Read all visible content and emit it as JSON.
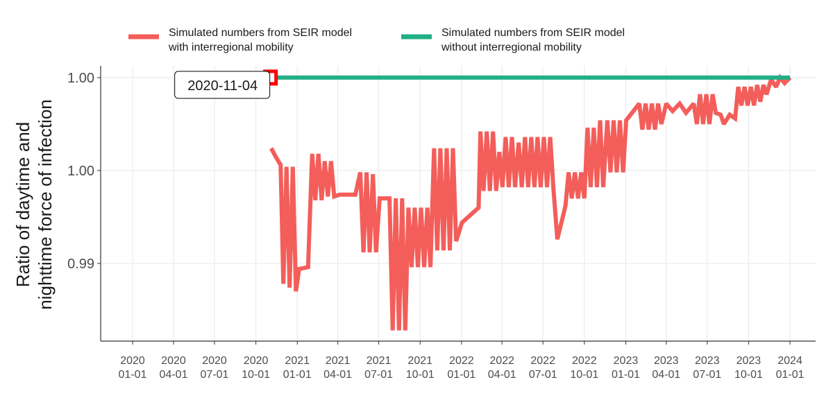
{
  "chart_data": {
    "type": "line",
    "ylabel": [
      "Ratio of daytime and",
      "nighttime force of infection"
    ],
    "xlim": [
      "2019-10-22",
      "2024-02-27"
    ],
    "ylim": [
      0.98582,
      1.00063
    ],
    "yticks": [
      {
        "value": 0.99,
        "label": "0.99"
      },
      {
        "value": 0.995,
        "label": "1.00"
      },
      {
        "value": 1.0,
        "label": "1.00"
      }
    ],
    "xticks": [
      {
        "value": "2020-01-01",
        "label": "2020\n01-01"
      },
      {
        "value": "2020-04-01",
        "label": "2020\n04-01"
      },
      {
        "value": "2020-07-01",
        "label": "2020\n07-01"
      },
      {
        "value": "2020-10-01",
        "label": "2020\n10-01"
      },
      {
        "value": "2021-01-01",
        "label": "2021\n01-01"
      },
      {
        "value": "2021-04-01",
        "label": "2021\n04-01"
      },
      {
        "value": "2021-07-01",
        "label": "2021\n07-01"
      },
      {
        "value": "2021-10-01",
        "label": "2021\n10-01"
      },
      {
        "value": "2022-01-01",
        "label": "2022\n01-01"
      },
      {
        "value": "2022-04-01",
        "label": "2022\n04-01"
      },
      {
        "value": "2022-07-01",
        "label": "2022\n07-01"
      },
      {
        "value": "2022-10-01",
        "label": "2022\n10-01"
      },
      {
        "value": "2023-01-01",
        "label": "2023\n01-01"
      },
      {
        "value": "2023-04-01",
        "label": "2023\n04-01"
      },
      {
        "value": "2023-07-01",
        "label": "2023\n07-01"
      },
      {
        "value": "2023-10-01",
        "label": "2023\n10-01"
      },
      {
        "value": "2024-01-01",
        "label": "2024\n01-01"
      }
    ],
    "grid": true,
    "legend": "top",
    "annotation": {
      "label": "2020-11-04",
      "x": "2020-11-04",
      "y": 1.0,
      "color": "#ff0000"
    },
    "series": [
      {
        "name": "Simulated numbers from SEIR model\nwith interregional mobility",
        "color": "#f35e5a",
        "x": [
          "2020-11-04",
          "2020-11-15",
          "2020-11-25",
          "2020-12-01",
          "2020-12-08",
          "2020-12-15",
          "2020-12-22",
          "2020-12-29",
          "2021-01-05",
          "2021-01-25",
          "2021-02-03",
          "2021-02-10",
          "2021-02-17",
          "2021-02-24",
          "2021-03-03",
          "2021-03-10",
          "2021-03-17",
          "2021-03-24",
          "2021-04-05",
          "2021-05-10",
          "2021-05-21",
          "2021-05-28",
          "2021-06-04",
          "2021-06-11",
          "2021-06-18",
          "2021-06-25",
          "2021-07-03",
          "2021-07-25",
          "2021-08-01",
          "2021-08-08",
          "2021-08-15",
          "2021-08-22",
          "2021-08-29",
          "2021-09-05",
          "2021-09-12",
          "2021-09-19",
          "2021-09-26",
          "2021-10-03",
          "2021-10-10",
          "2021-10-17",
          "2021-10-24",
          "2021-11-01",
          "2021-11-08",
          "2021-11-15",
          "2021-11-22",
          "2021-11-29",
          "2021-12-06",
          "2021-12-13",
          "2021-12-20",
          "2022-01-02",
          "2022-02-08",
          "2022-02-12",
          "2022-02-19",
          "2022-02-26",
          "2022-03-05",
          "2022-03-12",
          "2022-03-19",
          "2022-03-26",
          "2022-04-02",
          "2022-04-09",
          "2022-04-16",
          "2022-04-23",
          "2022-04-30",
          "2022-05-08",
          "2022-05-15",
          "2022-05-22",
          "2022-05-29",
          "2022-06-05",
          "2022-06-12",
          "2022-06-19",
          "2022-06-26",
          "2022-07-03",
          "2022-07-10",
          "2022-07-17",
          "2022-07-24",
          "2022-08-02",
          "2022-08-20",
          "2022-08-27",
          "2022-09-03",
          "2022-09-10",
          "2022-09-17",
          "2022-09-24",
          "2022-10-01",
          "2022-10-08",
          "2022-10-15",
          "2022-10-22",
          "2022-10-29",
          "2022-11-05",
          "2022-11-12",
          "2022-11-21",
          "2022-11-28",
          "2022-12-05",
          "2022-12-12",
          "2022-12-19",
          "2022-12-26",
          "2023-01-02",
          "2023-01-31",
          "2023-02-07",
          "2023-02-14",
          "2023-02-21",
          "2023-02-28",
          "2023-03-07",
          "2023-03-14",
          "2023-03-21",
          "2023-04-01",
          "2023-04-15",
          "2023-05-01",
          "2023-05-15",
          "2023-06-01",
          "2023-06-08",
          "2023-06-15",
          "2023-06-22",
          "2023-06-29",
          "2023-07-06",
          "2023-07-13",
          "2023-07-20",
          "2023-07-31",
          "2023-08-07",
          "2023-08-20",
          "2023-09-01",
          "2023-09-08",
          "2023-09-15",
          "2023-09-22",
          "2023-09-29",
          "2023-10-06",
          "2023-10-13",
          "2023-10-20",
          "2023-10-27",
          "2023-11-03",
          "2023-11-10",
          "2023-11-20",
          "2023-12-01",
          "2023-12-10",
          "2023-12-20",
          "2024-01-01"
        ],
        "values": [
          0.9962,
          0.9957,
          0.9953,
          0.9889,
          0.9952,
          0.9887,
          0.9952,
          0.9885,
          0.9897,
          0.9898,
          0.9959,
          0.9934,
          0.9959,
          0.9934,
          0.9955,
          0.9936,
          0.9955,
          0.9936,
          0.9937,
          0.9937,
          0.9949,
          0.9906,
          0.9949,
          0.9906,
          0.9948,
          0.9906,
          0.9935,
          0.9935,
          0.9864,
          0.9935,
          0.9864,
          0.9935,
          0.9864,
          0.993,
          0.9898,
          0.993,
          0.9898,
          0.993,
          0.9898,
          0.993,
          0.9898,
          0.9962,
          0.9907,
          0.9962,
          0.9907,
          0.9962,
          0.9907,
          0.9962,
          0.9912,
          0.9922,
          0.993,
          0.9971,
          0.9939,
          0.9971,
          0.9939,
          0.9971,
          0.9939,
          0.996,
          0.9941,
          0.9968,
          0.9941,
          0.9968,
          0.9941,
          0.9965,
          0.9941,
          0.9968,
          0.9941,
          0.9968,
          0.9941,
          0.9968,
          0.9941,
          0.9968,
          0.9941,
          0.9968,
          0.9941,
          0.9913,
          0.9931,
          0.9949,
          0.9935,
          0.9949,
          0.9935,
          0.9949,
          0.9935,
          0.9973,
          0.9941,
          0.9973,
          0.9941,
          0.9977,
          0.9941,
          0.9977,
          0.9949,
          0.9977,
          0.9949,
          0.9977,
          0.9949,
          0.9977,
          0.9986,
          0.9972,
          0.9986,
          0.9972,
          0.9986,
          0.9972,
          0.9986,
          0.9975,
          0.9986,
          0.9982,
          0.9986,
          0.9981,
          0.9986,
          0.9975,
          0.9991,
          0.9975,
          0.9991,
          0.9975,
          0.9991,
          0.9981,
          0.998,
          0.9975,
          0.998,
          0.9978,
          0.9995,
          0.9985,
          0.9995,
          0.9985,
          0.9995,
          0.9985,
          0.9996,
          0.9987,
          0.9996,
          0.9991,
          0.9999,
          0.9995,
          1.0,
          0.9997,
          1.0
        ]
      },
      {
        "name": "Simulated numbers from SEIR model\nwithout interregional mobility",
        "color": "#20af86",
        "x": [
          "2020-11-04",
          "2024-01-01"
        ],
        "values": [
          1.0,
          1.0
        ]
      }
    ]
  }
}
